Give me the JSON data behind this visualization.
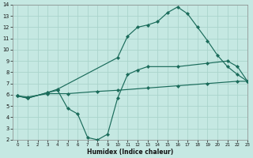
{
  "xlabel": "Humidex (Indice chaleur)",
  "xlim": [
    -0.5,
    23
  ],
  "ylim": [
    2,
    14
  ],
  "xticks": [
    0,
    1,
    2,
    3,
    4,
    5,
    6,
    7,
    8,
    9,
    10,
    11,
    12,
    13,
    14,
    15,
    16,
    17,
    18,
    19,
    20,
    21,
    22,
    23
  ],
  "yticks": [
    2,
    3,
    4,
    5,
    6,
    7,
    8,
    9,
    10,
    11,
    12,
    13,
    14
  ],
  "bg_color": "#c5e8e2",
  "grid_color": "#aad4cc",
  "line_color": "#1a6b5a",
  "line1_x": [
    0,
    1,
    3,
    5,
    8,
    10,
    13,
    16,
    19,
    22,
    23
  ],
  "line1_y": [
    5.9,
    5.8,
    6.1,
    6.1,
    6.3,
    6.4,
    6.6,
    6.8,
    7.0,
    7.2,
    7.2
  ],
  "line2_x": [
    0,
    1,
    3,
    4,
    5,
    6,
    7,
    8,
    9,
    10,
    11,
    12,
    13,
    16,
    19,
    21,
    22,
    23
  ],
  "line2_y": [
    5.9,
    5.7,
    6.2,
    6.4,
    4.8,
    4.3,
    2.2,
    2.0,
    2.5,
    5.7,
    7.8,
    8.2,
    8.5,
    8.5,
    8.8,
    9.0,
    8.5,
    7.2
  ],
  "line3_x": [
    0,
    1,
    3,
    4,
    10,
    11,
    12,
    13,
    14,
    15,
    16,
    17,
    18,
    19,
    20,
    21,
    22,
    23
  ],
  "line3_y": [
    5.9,
    5.7,
    6.2,
    6.5,
    9.3,
    11.2,
    12.0,
    12.2,
    12.5,
    13.3,
    13.8,
    13.2,
    12.0,
    10.8,
    9.5,
    8.5,
    7.8,
    7.2
  ]
}
